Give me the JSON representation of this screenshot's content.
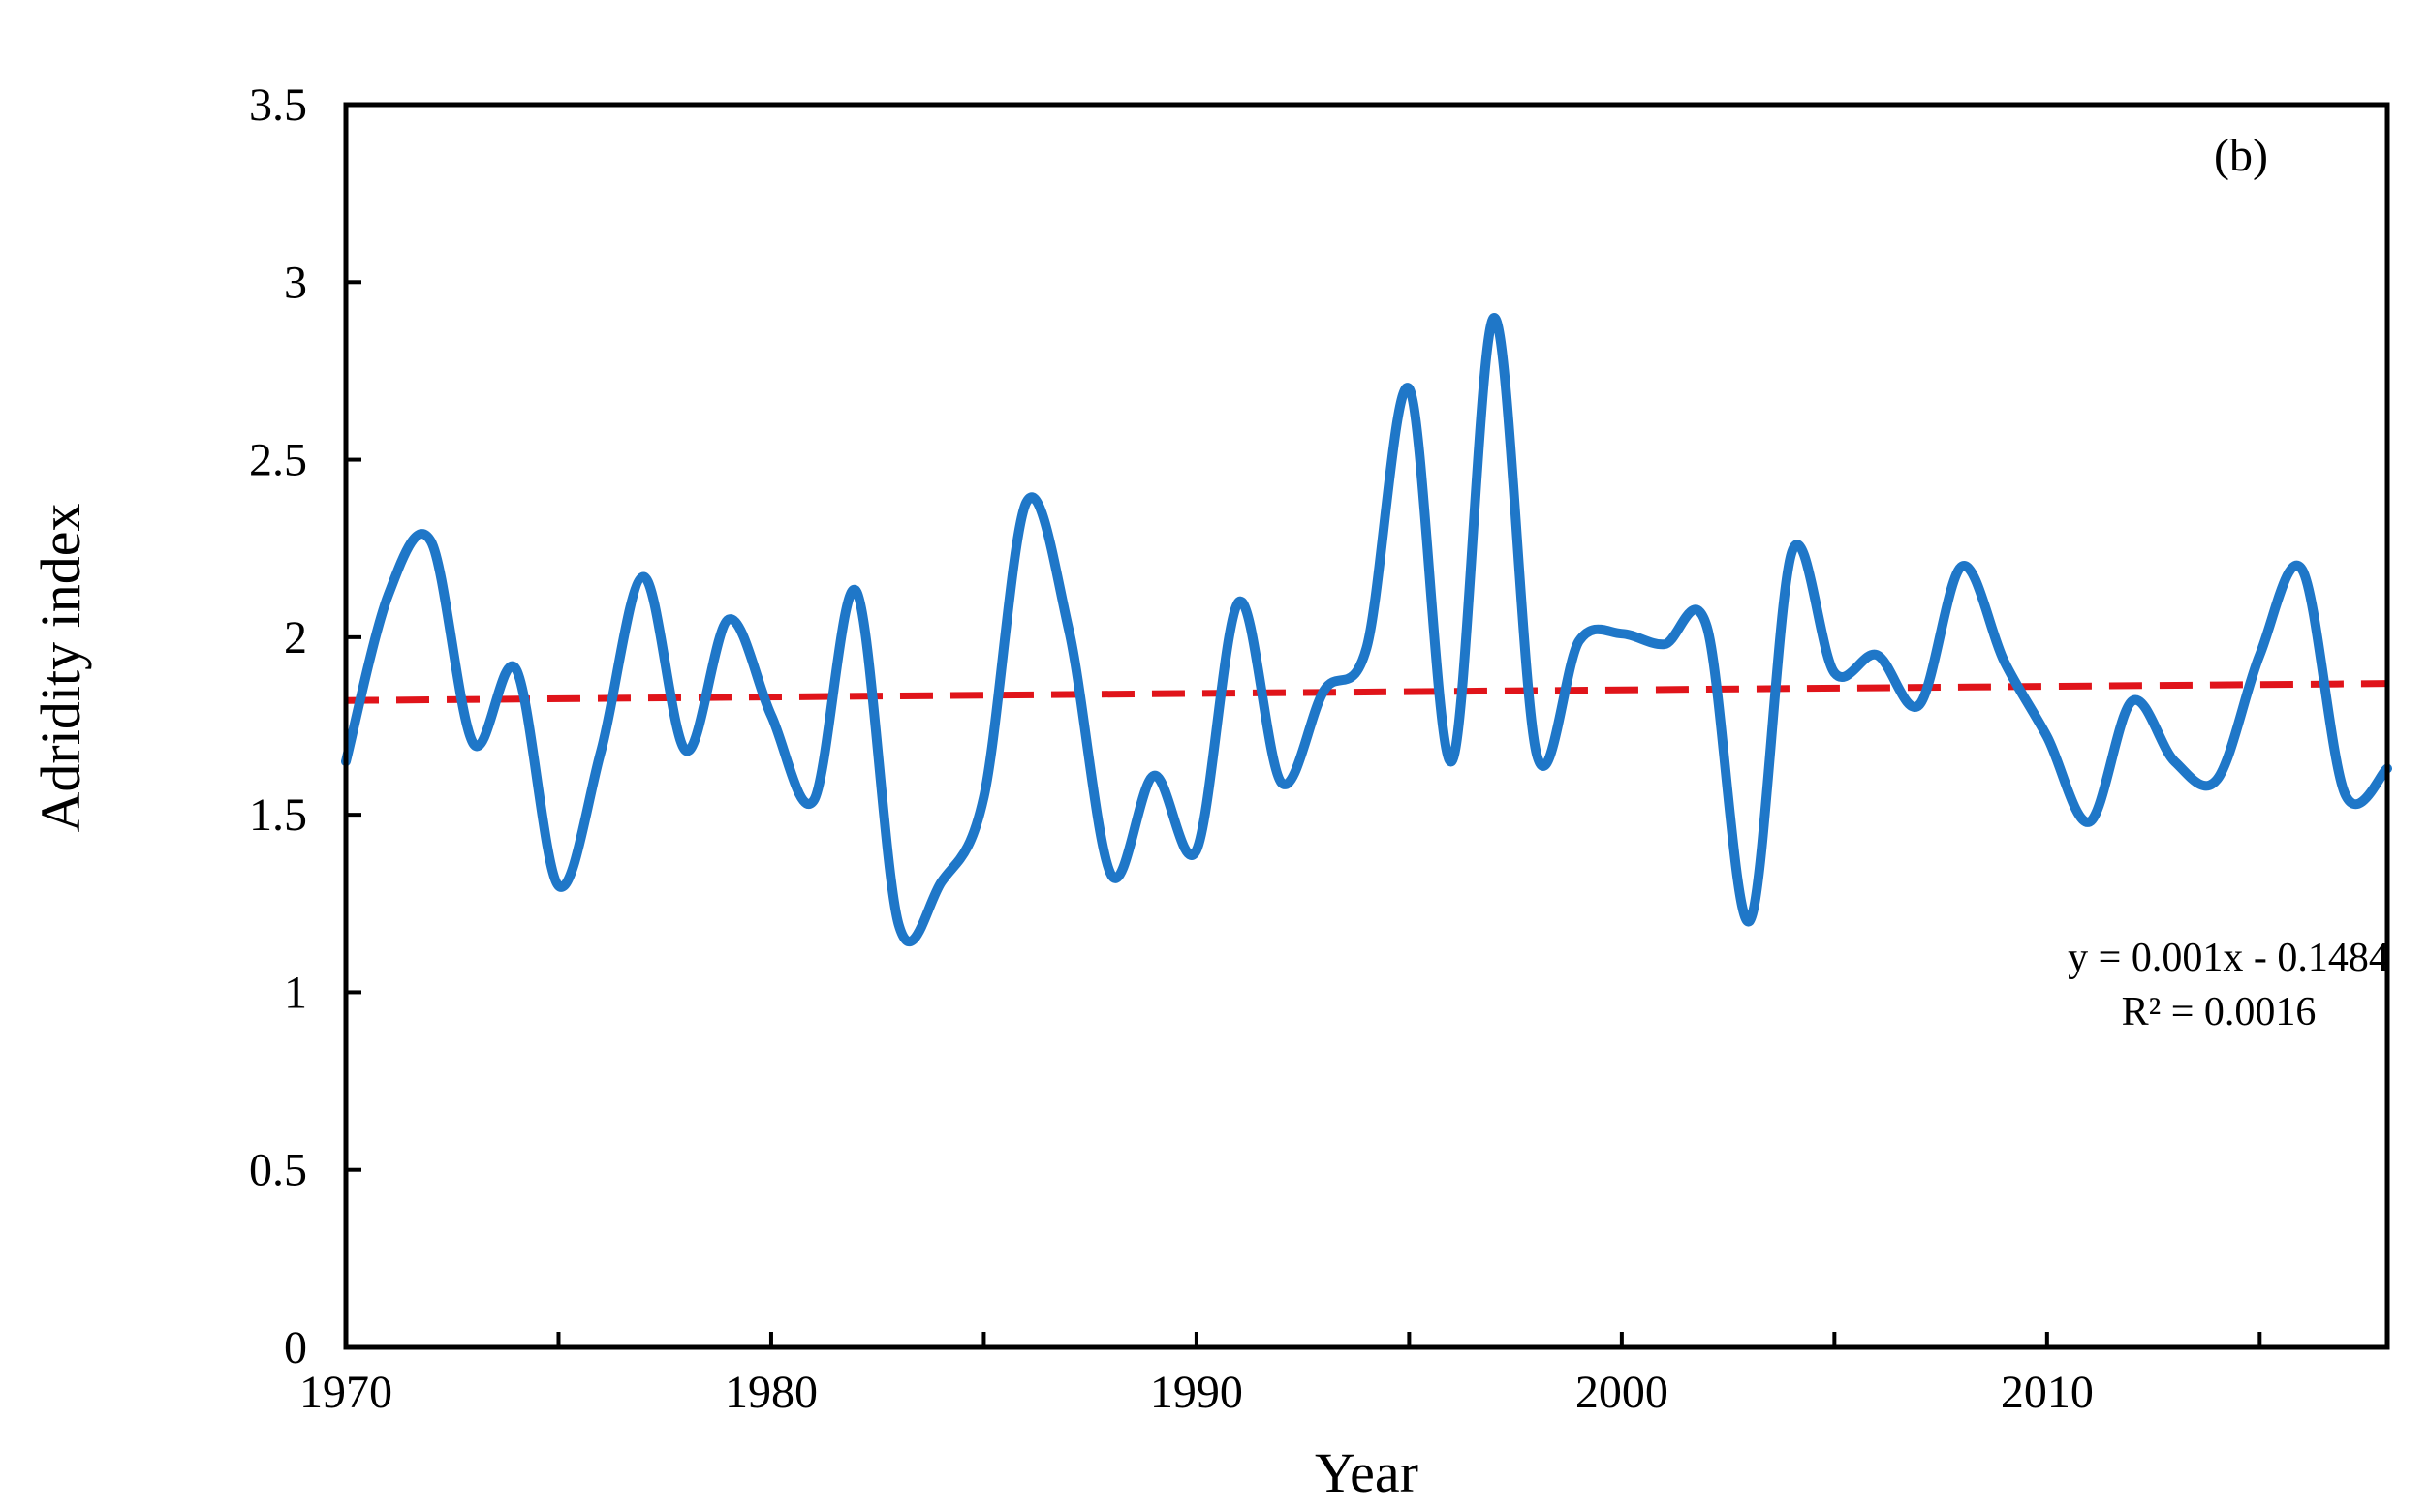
{
  "chart_data": {
    "type": "line",
    "xlabel": "Year",
    "ylabel": "Adridity index",
    "xlim": [
      1970,
      2018
    ],
    "ylim": [
      0,
      3.5
    ],
    "x_ticks": [
      1970,
      1980,
      1990,
      2000,
      2010
    ],
    "y_ticks": [
      0,
      0.5,
      1,
      1.5,
      2,
      2.5,
      3,
      3.5
    ],
    "y_tick_labels": [
      "0",
      "0.5",
      "1",
      "1.5",
      "2",
      "2.5",
      "3",
      "3.5"
    ],
    "grid": false,
    "panel_label": "(b)",
    "series": [
      {
        "color": "#1f77c8",
        "smooth": true,
        "x": [
          1970,
          1971,
          1972,
          1973,
          1974,
          1975,
          1976,
          1977,
          1978,
          1979,
          1980,
          1981,
          1982,
          1983,
          1984,
          1985,
          1986,
          1987,
          1988,
          1989,
          1990,
          1991,
          1992,
          1993,
          1994,
          1995,
          1996,
          1997,
          1998,
          1999,
          2000,
          2001,
          2002,
          2003,
          2004,
          2005,
          2006,
          2007,
          2008,
          2009,
          2010,
          2011,
          2012,
          2013,
          2014,
          2015,
          2016,
          2017,
          2018
        ],
        "y": [
          1.65,
          2.12,
          2.27,
          1.7,
          1.91,
          1.3,
          1.68,
          2.17,
          1.68,
          2.05,
          1.78,
          1.54,
          2.13,
          1.19,
          1.31,
          1.55,
          2.38,
          2.02,
          1.33,
          1.61,
          1.4,
          2.1,
          1.59,
          1.85,
          1.97,
          2.7,
          1.65,
          2.9,
          1.67,
          1.99,
          2.01,
          1.98,
          2.03,
          1.2,
          2.24,
          1.9,
          1.95,
          1.81,
          2.2,
          1.93,
          1.72,
          1.48,
          1.82,
          1.65,
          1.6,
          1.95,
          2.19,
          1.56,
          1.63
        ]
      }
    ],
    "trendline": {
      "color": "#e0141a",
      "style": "dashed",
      "slope": 0.001,
      "intercept": -0.1484,
      "equation": "y = 0.001x - 0.1484",
      "r2": "R² = 0.0016"
    }
  }
}
